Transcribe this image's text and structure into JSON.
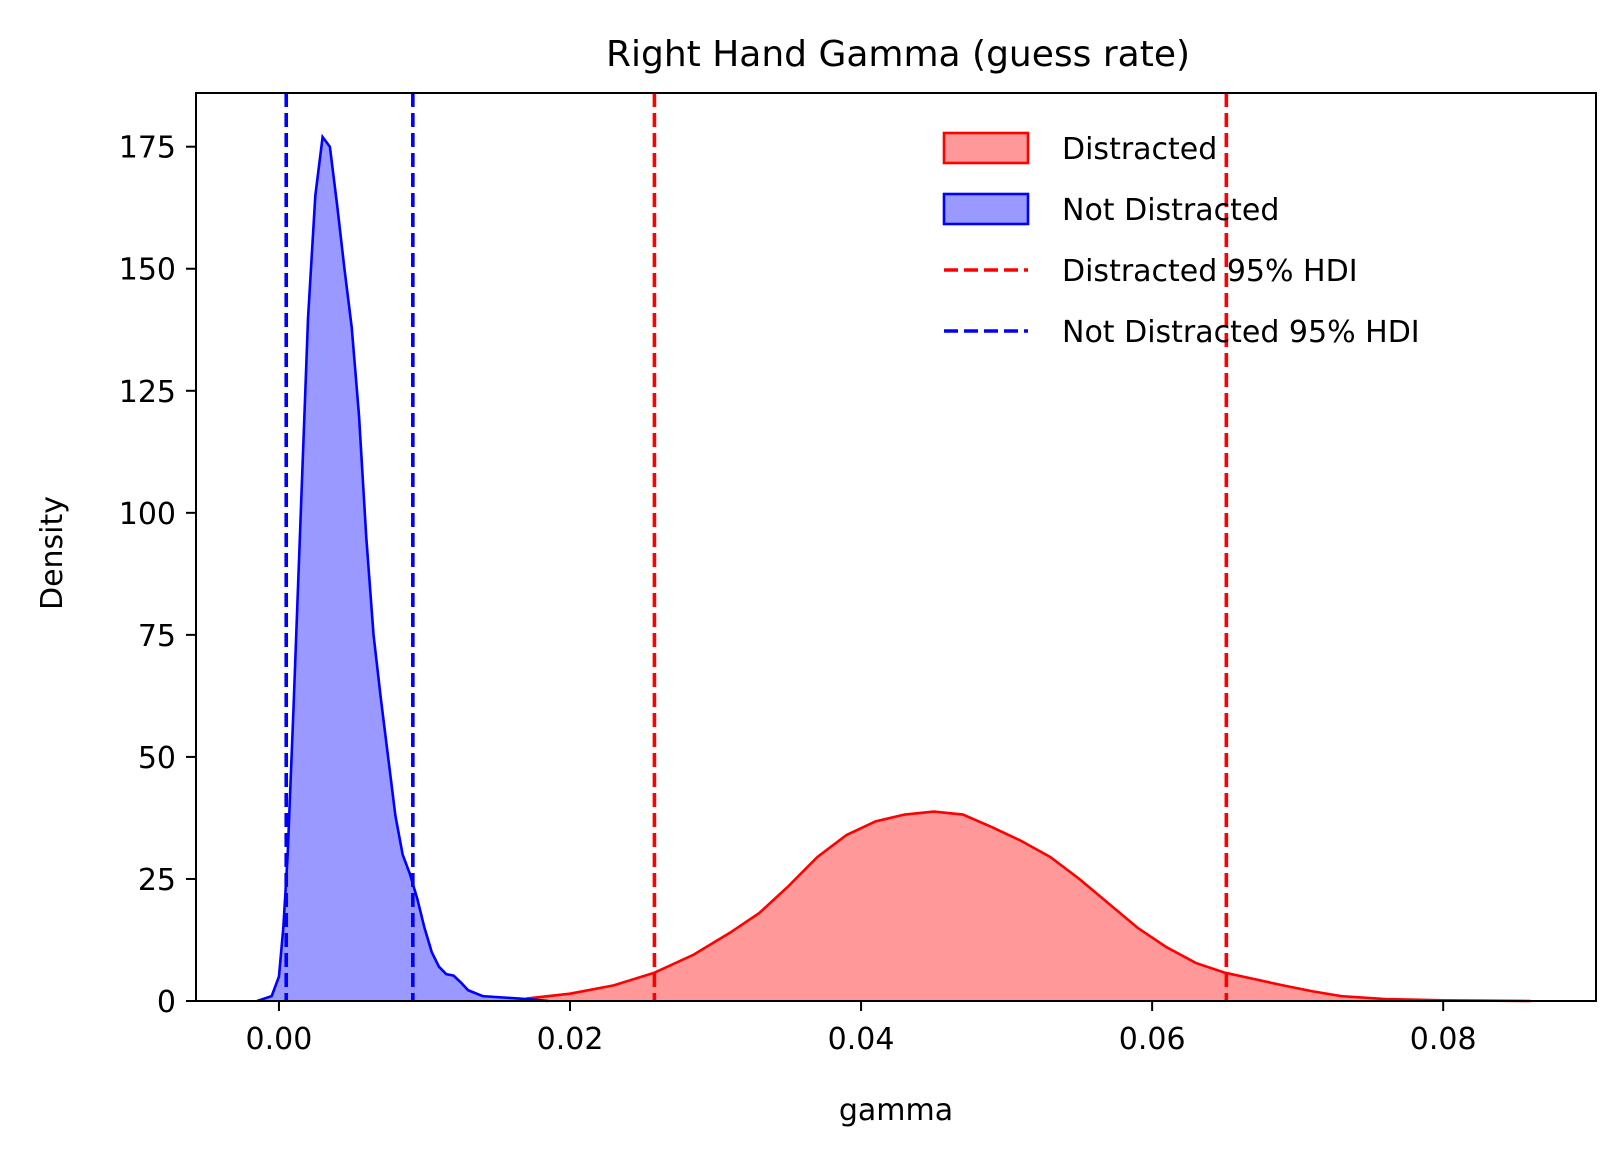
{
  "chart_data": {
    "type": "area",
    "title": "Right Hand Gamma (guess rate)",
    "xlabel": "gamma",
    "ylabel": "Density",
    "xlim": [
      -0.0057,
      0.0905
    ],
    "ylim": [
      0,
      186
    ],
    "xticks": [
      0.0,
      0.02,
      0.04,
      0.06,
      0.08
    ],
    "xtick_labels": [
      "0.00",
      "0.02",
      "0.04",
      "0.06",
      "0.08"
    ],
    "yticks": [
      0,
      25,
      50,
      75,
      100,
      125,
      150,
      175
    ],
    "ytick_labels": [
      "0",
      "25",
      "50",
      "75",
      "100",
      "125",
      "150",
      "175"
    ],
    "grid": false,
    "legend_position": "top-right",
    "series": [
      {
        "name": "Distracted",
        "kind": "density",
        "color": "#ff0000",
        "fill": "#ff9999",
        "points": [
          [
            0.017,
            0.5
          ],
          [
            0.02,
            1.5
          ],
          [
            0.023,
            3.2
          ],
          [
            0.0258,
            5.8
          ],
          [
            0.0285,
            9.5
          ],
          [
            0.031,
            14.0
          ],
          [
            0.033,
            18.0
          ],
          [
            0.035,
            23.5
          ],
          [
            0.037,
            29.5
          ],
          [
            0.039,
            34.0
          ],
          [
            0.041,
            36.8
          ],
          [
            0.043,
            38.2
          ],
          [
            0.045,
            38.8
          ],
          [
            0.047,
            38.2
          ],
          [
            0.049,
            35.6
          ],
          [
            0.051,
            32.8
          ],
          [
            0.053,
            29.5
          ],
          [
            0.055,
            25.0
          ],
          [
            0.057,
            20.0
          ],
          [
            0.059,
            15.0
          ],
          [
            0.061,
            11.0
          ],
          [
            0.063,
            7.8
          ],
          [
            0.065,
            5.8
          ],
          [
            0.067,
            4.5
          ],
          [
            0.069,
            3.2
          ],
          [
            0.071,
            2.0
          ],
          [
            0.073,
            1.0
          ],
          [
            0.076,
            0.4
          ],
          [
            0.08,
            0.15
          ],
          [
            0.086,
            0.0
          ]
        ]
      },
      {
        "name": "Not Distracted",
        "kind": "density",
        "color": "#0000ff",
        "fill": "#9999ff",
        "points": [
          [
            -0.0015,
            0.0
          ],
          [
            -0.0005,
            1.0
          ],
          [
            0.0,
            5.0
          ],
          [
            0.0003,
            15.0
          ],
          [
            0.0006,
            30.0
          ],
          [
            0.001,
            60.0
          ],
          [
            0.0015,
            100.0
          ],
          [
            0.002,
            140.0
          ],
          [
            0.0025,
            165.0
          ],
          [
            0.003,
            177.0
          ],
          [
            0.0035,
            175.0
          ],
          [
            0.004,
            163.0
          ],
          [
            0.0045,
            150.0
          ],
          [
            0.005,
            138.0
          ],
          [
            0.0055,
            120.0
          ],
          [
            0.006,
            95.0
          ],
          [
            0.0065,
            75.0
          ],
          [
            0.007,
            62.0
          ],
          [
            0.0075,
            50.0
          ],
          [
            0.008,
            38.0
          ],
          [
            0.0085,
            30.0
          ],
          [
            0.009,
            26.0
          ],
          [
            0.0095,
            21.0
          ],
          [
            0.01,
            15.0
          ],
          [
            0.0105,
            10.0
          ],
          [
            0.011,
            7.0
          ],
          [
            0.0115,
            5.5
          ],
          [
            0.012,
            5.2
          ],
          [
            0.0125,
            3.8
          ],
          [
            0.013,
            2.2
          ],
          [
            0.014,
            1.0
          ],
          [
            0.016,
            0.6
          ],
          [
            0.0175,
            0.3
          ],
          [
            0.0185,
            0.0
          ]
        ]
      }
    ],
    "hdi_lines": [
      {
        "name": "Distracted 95% HDI",
        "color": "#ff0000",
        "x": [
          0.0258,
          0.0651
        ]
      },
      {
        "name": "Not Distracted 95% HDI",
        "color": "#0000ff",
        "x": [
          0.0005,
          0.0092
        ]
      }
    ]
  }
}
